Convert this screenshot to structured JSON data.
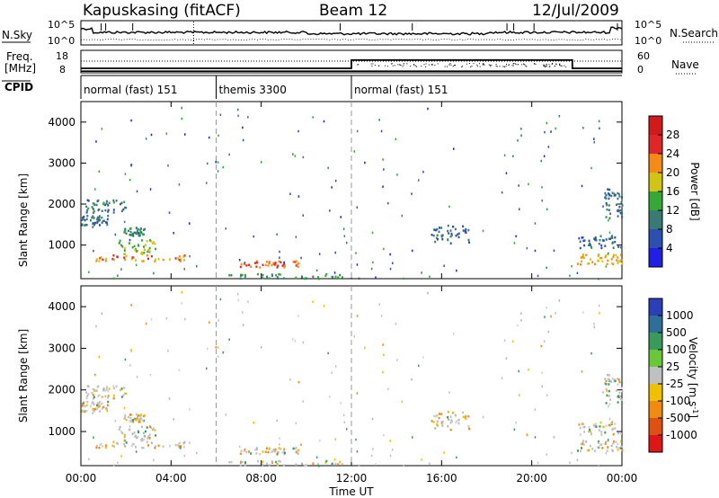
{
  "header": {
    "station": "Kapuskasing (fitACF)",
    "beam": "Beam 12",
    "date": "12/Jul/2009"
  },
  "top_panels": {
    "nsky_label": "N.Sky",
    "nsky_ticks": [
      "10^5",
      "10^0"
    ],
    "nsearch_label": "N.Search",
    "nsearch_ticks": [
      "10^5",
      "10^0"
    ],
    "freq_label_line1": "Freq.",
    "freq_label_line2": "[MHz]",
    "freq_ticks": [
      "18",
      "8"
    ],
    "nave_label": "Nave",
    "nave_ticks": [
      "60",
      "0"
    ],
    "cpid_label": "CPID",
    "cpid_segments": [
      {
        "label": "normal (fast) 151",
        "start_hour": 0,
        "end_hour": 6
      },
      {
        "label": "themis 3300",
        "start_hour": 6,
        "end_hour": 12
      },
      {
        "label": "normal (fast) 151",
        "start_hour": 12,
        "end_hour": 24
      }
    ]
  },
  "time_axis": {
    "label": "Time UT",
    "ticks": [
      "00:00",
      "04:00",
      "08:00",
      "12:00",
      "16:00",
      "20:00",
      "00:00"
    ],
    "tick_hours": [
      0,
      4,
      8,
      12,
      16,
      20,
      24
    ]
  },
  "power_panel": {
    "ylabel": "Slant Range [km]",
    "yticks": [
      "1000",
      "2000",
      "3000",
      "4000"
    ],
    "cbar_label": "Power [dB]",
    "cbar_ticks": [
      "4",
      "8",
      "12",
      "16",
      "20",
      "24",
      "28"
    ],
    "cbar_colors": [
      "#1f1fe6",
      "#2d4fb0",
      "#3a7a74",
      "#36a838",
      "#d2c414",
      "#f58a14",
      "#e02626",
      "#d31a1a"
    ]
  },
  "velocity_panel": {
    "ylabel": "Slant Range [km]",
    "yticks": [
      "1000",
      "2000",
      "3000",
      "4000"
    ],
    "cbar_label": "Velocity [m s^-1]",
    "cbar_ticks": [
      "1000",
      "500",
      "100",
      "25",
      "-25",
      "-100",
      "-500",
      "-1000"
    ],
    "cbar_colors": [
      "#2a3fb8",
      "#2d6f9a",
      "#3a9a5a",
      "#6ac73a",
      "#c0c0c0",
      "#f0c000",
      "#f08a10",
      "#e05010",
      "#e01515"
    ]
  },
  "chart_data": {
    "type": "heatmap",
    "xlim": [
      0,
      24
    ],
    "ylim": [
      180,
      4500
    ],
    "x_unit": "hours UT",
    "y_unit": "km",
    "scatter_regions": [
      {
        "t0": 0.2,
        "t1": 2.0,
        "r0": 1800,
        "r1": 2150,
        "power_level": 8
      },
      {
        "t0": 0.0,
        "t1": 1.2,
        "r0": 1500,
        "r1": 1750,
        "power_level": 6
      },
      {
        "t0": 0.3,
        "t1": 4.7,
        "r0": 620,
        "r1": 780,
        "power_level": 20
      },
      {
        "t0": 1.6,
        "t1": 3.3,
        "r0": 800,
        "r1": 1150,
        "power_level": 14
      },
      {
        "t0": 1.8,
        "t1": 2.8,
        "r0": 1250,
        "r1": 1450,
        "power_level": 8
      },
      {
        "t0": 6.3,
        "t1": 11.8,
        "r0": 200,
        "r1": 320,
        "power_level": 10
      },
      {
        "t0": 7.0,
        "t1": 9.7,
        "r0": 480,
        "r1": 640,
        "power_level": 22
      },
      {
        "t0": 15.5,
        "t1": 17.2,
        "r0": 1050,
        "r1": 1500,
        "power_level": 6
      },
      {
        "t0": 22.0,
        "t1": 24.0,
        "r0": 950,
        "r1": 1250,
        "power_level": 6
      },
      {
        "t0": 22.0,
        "t1": 24.0,
        "r0": 550,
        "r1": 800,
        "power_level": 18
      },
      {
        "t0": 23.2,
        "t1": 24.0,
        "r0": 1600,
        "r1": 2400,
        "power_level": 6
      }
    ],
    "frequency_mhz": {
      "start_hour": 0,
      "end_hour": 24,
      "value": 10
    },
    "nave_steps": [
      {
        "start_hour": 0,
        "end_hour": 12,
        "value": 10
      },
      {
        "start_hour": 12,
        "end_hour": 21.8,
        "value": 33
      },
      {
        "start_hour": 21.8,
        "end_hour": 24,
        "value": 10
      }
    ]
  }
}
